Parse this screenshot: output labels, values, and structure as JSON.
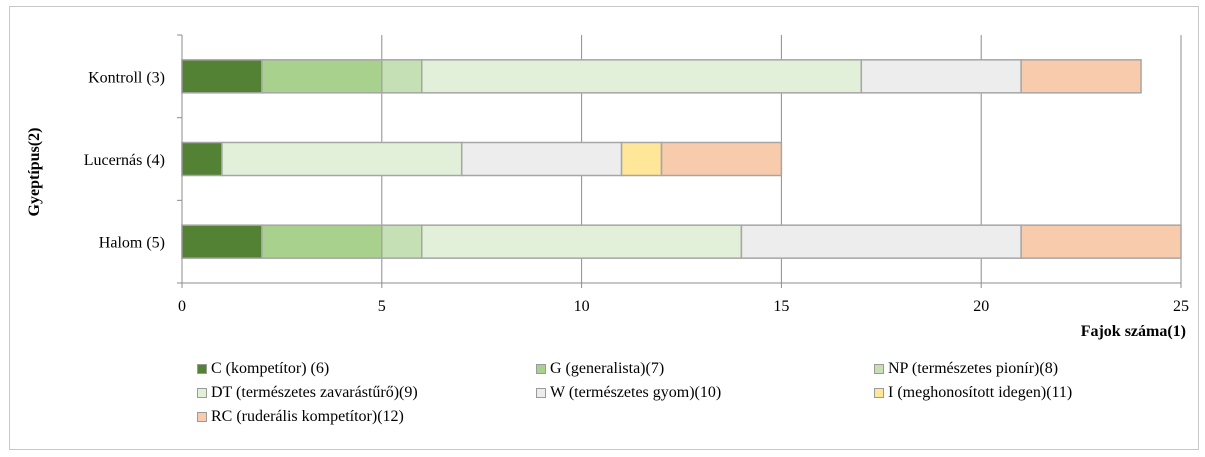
{
  "chart_data": {
    "type": "bar",
    "orientation": "horizontal",
    "stacked": true,
    "xlabel": "Fajok száma(1)",
    "ylabel": "Gyeptípus(2)",
    "xlim": [
      0,
      25
    ],
    "xticks": [
      "0",
      "5",
      "10",
      "15",
      "20",
      "25"
    ],
    "grid": true,
    "legend_position": "bottom",
    "categories": [
      "Kontroll (3)",
      "Lucernás (4)",
      "Halom (5)"
    ],
    "series": [
      {
        "name": "C (kompetítor) (6)",
        "color": "#548235",
        "values": [
          2,
          1,
          2
        ]
      },
      {
        "name": "G (generalista)(7)",
        "color": "#a9d18e",
        "values": [
          3,
          0,
          3
        ]
      },
      {
        "name": "NP (természetes pionír)(8)",
        "color": "#c5e0b4",
        "values": [
          1,
          0,
          1
        ]
      },
      {
        "name": "DT (természetes zavarástűrő)(9)",
        "color": "#e2f0d9",
        "values": [
          11,
          6,
          8
        ]
      },
      {
        "name": "W (természetes gyom)(10)",
        "color": "#ededed",
        "values": [
          4,
          4,
          7
        ]
      },
      {
        "name": "I (meghonosított idegen)(11)",
        "color": "#ffe699",
        "values": [
          0,
          1,
          0
        ]
      },
      {
        "name": "RC (ruderális kompetítor)(12)",
        "color": "#f8cbad",
        "values": [
          3,
          3,
          4
        ]
      }
    ]
  }
}
